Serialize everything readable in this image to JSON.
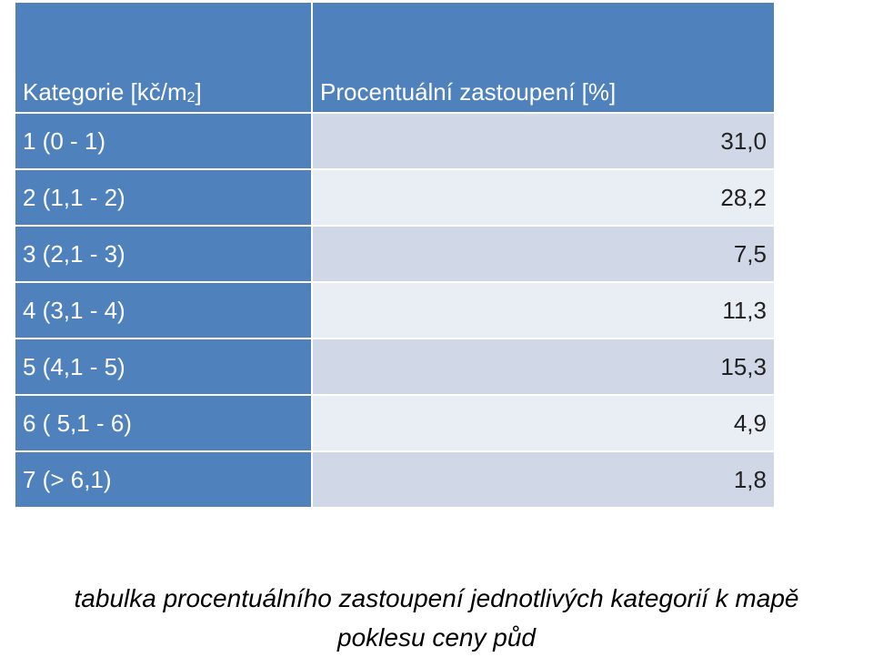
{
  "table": {
    "header": [
      {
        "text": "Kategorie [kč/m",
        "sup": "2",
        "close": "]"
      },
      {
        "text": "Procentuální zastoupení [%]"
      }
    ],
    "rows": [
      [
        "1 (0 - 1)",
        "31,0"
      ],
      [
        "2 (1,1 - 2)",
        "28,2"
      ],
      [
        "3 (2,1 - 3)",
        "7,5"
      ],
      [
        "4 (3,1 - 4)",
        "11,3"
      ],
      [
        "5 (4,1 - 5)",
        "15,3"
      ],
      [
        "6 ( 5,1 - 6)",
        "4,9"
      ],
      [
        "7 (> 6,1)",
        "1,8"
      ]
    ]
  },
  "caption": [
    "tabulka procentuálního zastoupení jednotlivých kategorií k mapě",
    "poklesu ceny půd"
  ]
}
